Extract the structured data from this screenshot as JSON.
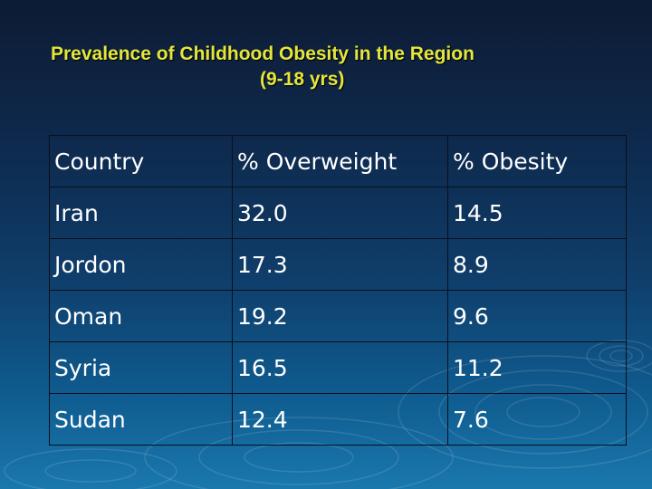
{
  "slide": {
    "title_line1": "Prevalence of Childhood Obesity in the Region",
    "title_line2": "(9-18 yrs)"
  },
  "table": {
    "headers": [
      "Country",
      "% Overweight",
      "% Obesity"
    ],
    "rows": [
      [
        "Iran",
        "32.0",
        "14.5"
      ],
      [
        "Jordon",
        "17.3",
        "8.9"
      ],
      [
        "Oman",
        "19.2",
        "9.6"
      ],
      [
        "Syria",
        "16.5",
        "11.2"
      ],
      [
        "Sudan",
        "12.4",
        "7.6"
      ]
    ]
  },
  "colors": {
    "title": "#e4e63a",
    "text": "#ffffff",
    "background_top": "#0d1b34",
    "background_bottom": "#1a78ad"
  }
}
